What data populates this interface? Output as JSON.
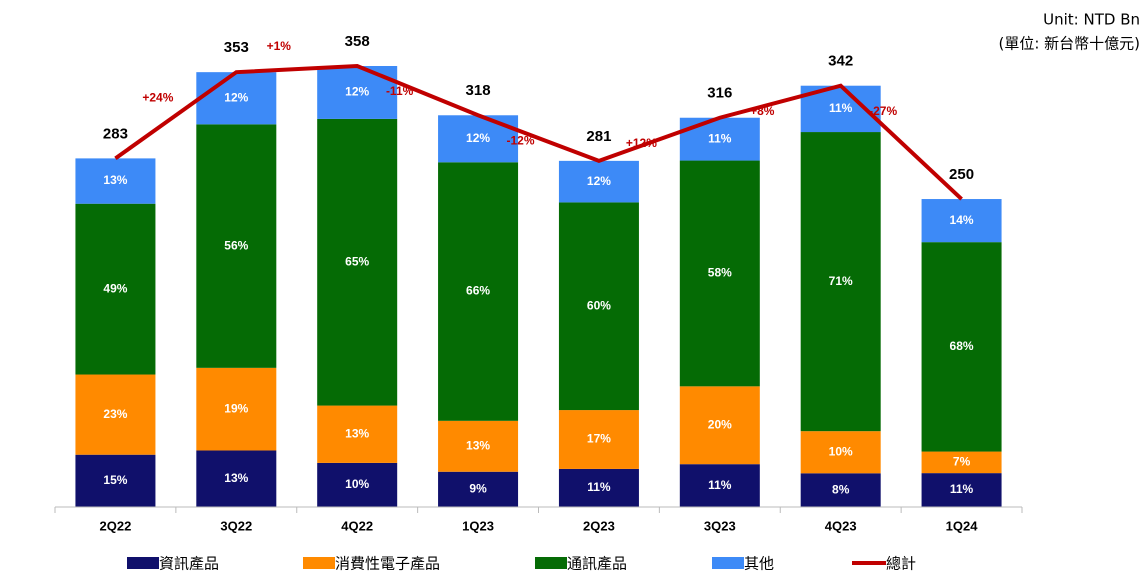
{
  "chart_data": {
    "type": "bar",
    "stacked": true,
    "unit": "Unit: NTD Bn",
    "unit_local": "(單位: 新台幣十億元)",
    "categories": [
      "2Q22",
      "3Q22",
      "4Q22",
      "1Q23",
      "2Q23",
      "3Q23",
      "4Q23",
      "1Q24"
    ],
    "series": [
      {
        "name": "資訊產品",
        "color": "#10106b",
        "values": [
          15,
          13,
          10,
          9,
          11,
          11,
          8,
          11
        ],
        "value_labels": [
          "15%",
          "13%",
          "10%",
          "9%",
          "11%",
          "11%",
          "8%",
          "11%"
        ]
      },
      {
        "name": "消費性電子產品",
        "color": "#ff8a00",
        "values": [
          23,
          19,
          13,
          13,
          17,
          20,
          10,
          7
        ],
        "value_labels": [
          "23%",
          "19%",
          "13%",
          "13%",
          "17%",
          "20%",
          "10%",
          "7%"
        ]
      },
      {
        "name": "通訊產品",
        "color": "#056b05",
        "values": [
          49,
          56,
          65,
          66,
          60,
          58,
          71,
          68
        ],
        "value_labels": [
          "49%",
          "56%",
          "65%",
          "66%",
          "60%",
          "58%",
          "71%",
          "68%"
        ]
      },
      {
        "name": "其他",
        "color": "#3d8af7",
        "values": [
          13,
          12,
          12,
          12,
          12,
          11,
          11,
          14
        ],
        "value_labels": [
          "13%",
          "12%",
          "12%",
          "12%",
          "12%",
          "11%",
          "11%",
          "14%"
        ]
      }
    ],
    "total": {
      "name": "總計",
      "color": "#c00000",
      "values": [
        283,
        353,
        358,
        318,
        281,
        316,
        342,
        250
      ]
    },
    "changes": [
      {
        "value": 24,
        "label": "+24%"
      },
      {
        "value": 1,
        "label": "+1%"
      },
      {
        "value": -11,
        "label": "-11%"
      },
      {
        "value": -12,
        "label": "-12%"
      },
      {
        "value": 12,
        "label": "+12%"
      },
      {
        "value": 8,
        "label": "+8%"
      },
      {
        "value": -27,
        "label": "-27%"
      }
    ]
  }
}
